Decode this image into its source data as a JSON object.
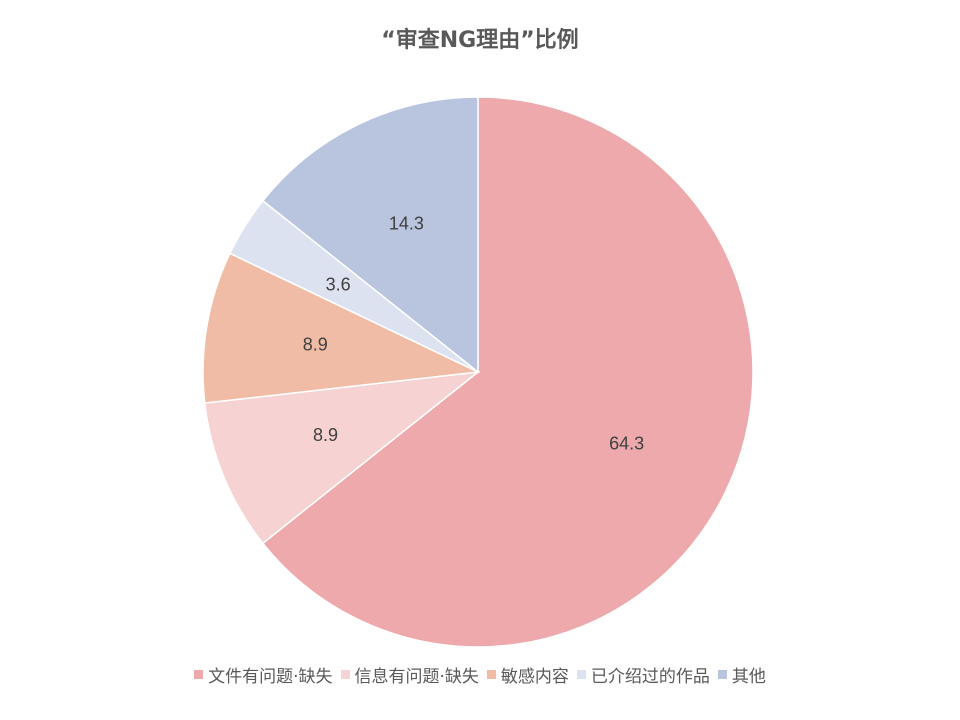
{
  "chart_data": {
    "type": "pie",
    "title": "“审查NG理由”比例",
    "legend_position": "bottom",
    "start_angle": "12 o'clock",
    "direction": "clockwise",
    "slices": [
      {
        "name": "文件有问题·缺失",
        "value": 64.3,
        "label": "64.3",
        "color": "#EEA9AC"
      },
      {
        "name": "信息有问题·缺失",
        "value": 8.9,
        "label": "8.9",
        "color": "#F6D2D3"
      },
      {
        "name": "敏感内容",
        "value": 8.9,
        "label": "8.9",
        "color": "#F0BCA6"
      },
      {
        "name": "已介绍过的作品",
        "value": 3.6,
        "label": "3.6",
        "color": "#DDE2F0"
      },
      {
        "name": "其他",
        "value": 14.3,
        "label": "14.3",
        "color": "#B9C5DF"
      }
    ]
  }
}
